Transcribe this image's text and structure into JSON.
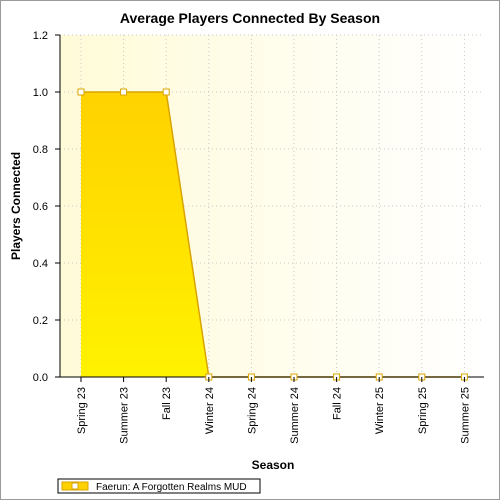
{
  "chart_data": {
    "type": "area",
    "title": "Average Players Connected By Season",
    "xlabel": "Season",
    "ylabel": "Players Connected",
    "categories": [
      "Spring 23",
      "Summer 23",
      "Fall 23",
      "Winter 24",
      "Spring 24",
      "Summer 24",
      "Fall 24",
      "Winter 25",
      "Spring 25",
      "Summer 25"
    ],
    "series": [
      {
        "name": "Faerun: A Forgotten Realms MUD",
        "values": [
          1.0,
          1.0,
          1.0,
          0.0,
          0.0,
          0.0,
          0.0,
          0.0,
          0.0,
          0.0
        ]
      }
    ],
    "ylim": [
      0,
      1.2
    ],
    "yticks": [
      "0.0",
      "0.2",
      "0.4",
      "0.6",
      "0.8",
      "1.0",
      "1.2"
    ],
    "grid": true,
    "legend_position": "bottom-left",
    "colors": {
      "fill_top": "#ffd200",
      "fill_bottom": "#fff200",
      "line": "#d9a400",
      "marker_fill": "#ffffff",
      "plot_bg_left": "#fffbd8",
      "plot_bg_right": "#ffffff"
    }
  }
}
